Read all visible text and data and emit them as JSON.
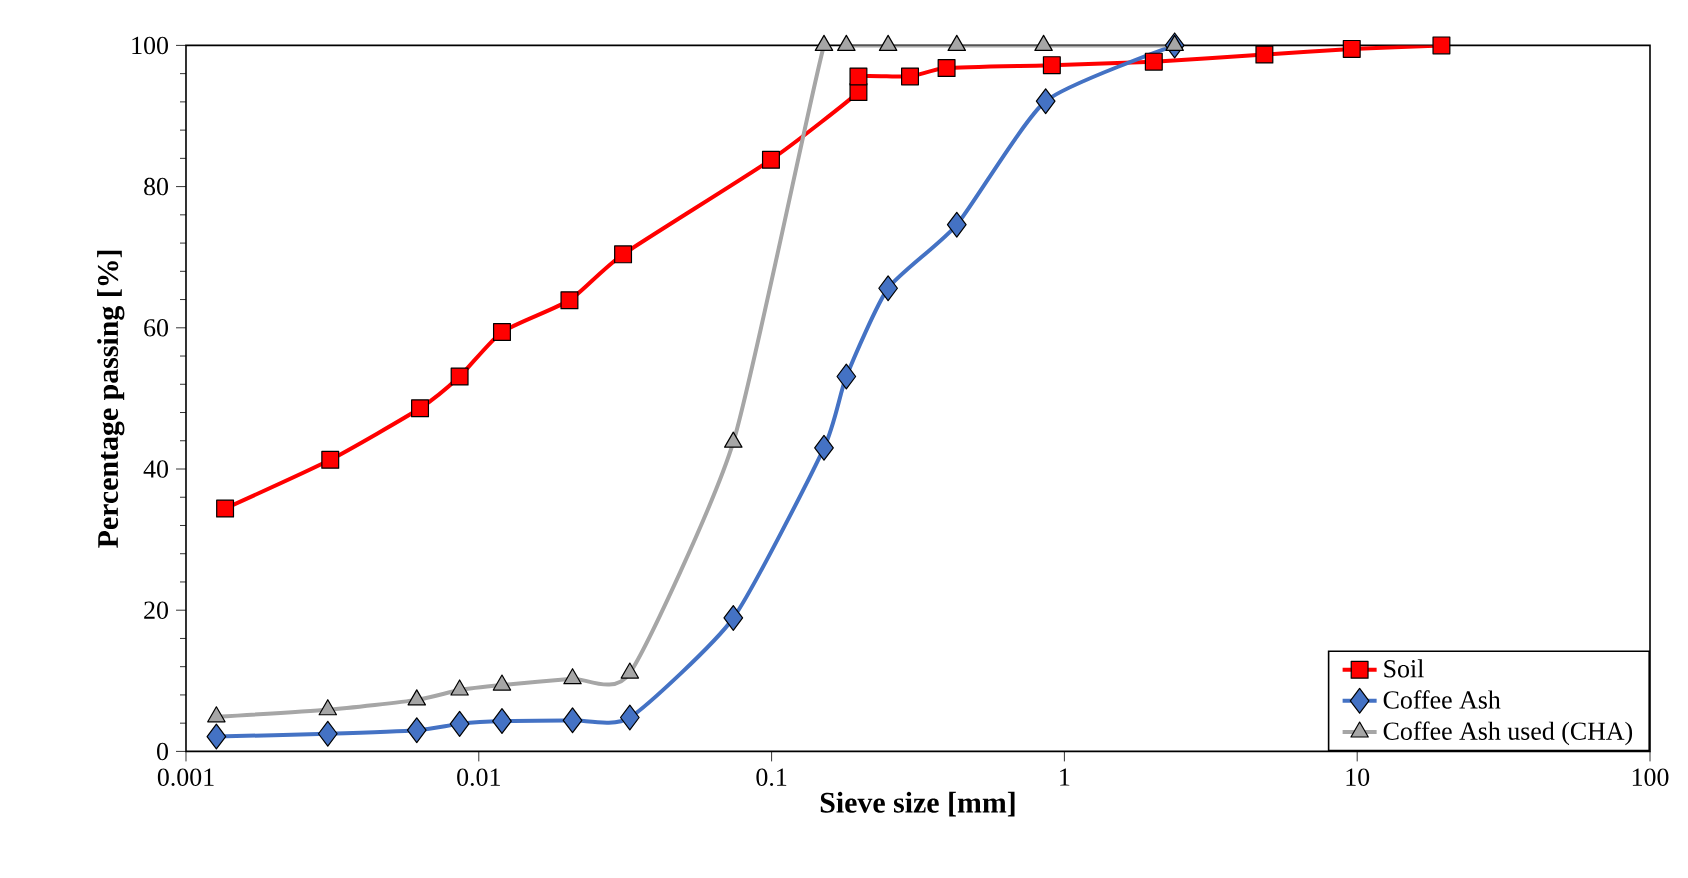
{
  "chart_data": {
    "type": "line",
    "xlabel": "Sieve size [mm]",
    "ylabel": "Percentage passing [%]",
    "log": "x",
    "xlim": [
      0.001,
      100
    ],
    "xticks": [
      0.001,
      0.01,
      0.1,
      1,
      10,
      100
    ],
    "ylim": [
      0,
      100
    ],
    "yticks": [
      0,
      20,
      40,
      60,
      80,
      100
    ],
    "grid": false,
    "legend": "bottom right",
    "series": [
      {
        "name": "Soil",
        "color": "#ff0000",
        "marker": "square",
        "x": [
          0.00136,
          0.00311,
          0.0063,
          0.0086,
          0.012,
          0.0204,
          0.0311,
          0.0995,
          0.198,
          0.198,
          0.297,
          0.396,
          0.906,
          2.02,
          4.82,
          9.58,
          19.4
        ],
        "values": [
          34.4,
          41.3,
          48.6,
          53.1,
          59.4,
          63.9,
          70.4,
          83.8,
          93.4,
          95.6,
          95.6,
          96.8,
          97.2,
          97.7,
          98.7,
          99.5,
          100
        ]
      },
      {
        "name": "Coffee Ash",
        "color": "#4472c4",
        "marker": "diamond",
        "x": [
          0.00127,
          0.00305,
          0.00614,
          0.0086,
          0.012,
          0.0209,
          0.0328,
          0.074,
          0.151,
          0.18,
          0.25,
          0.429,
          0.863,
          2.38
        ],
        "values": [
          2.1,
          2.5,
          3.0,
          3.9,
          4.3,
          4.4,
          4.8,
          18.9,
          43.0,
          53.1,
          65.6,
          74.6,
          92.1,
          100
        ]
      },
      {
        "name": "Coffee Ash used (CHA)",
        "color": "#a6a6a6",
        "marker": "triangle",
        "x": [
          0.00127,
          0.00305,
          0.00614,
          0.0086,
          0.012,
          0.0209,
          0.0328,
          0.074,
          0.151,
          0.18,
          0.25,
          0.429,
          0.849,
          2.38
        ],
        "values": [
          4.9,
          5.9,
          7.3,
          8.7,
          9.4,
          10.3,
          11.1,
          43.8,
          100,
          100,
          100,
          100,
          100,
          100
        ]
      }
    ]
  }
}
